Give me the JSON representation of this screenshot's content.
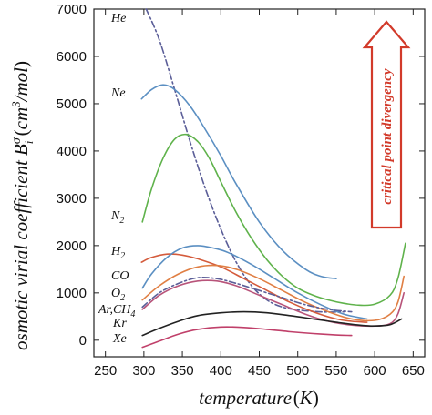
{
  "chart_data": {
    "type": "line",
    "xlabel": "temperature",
    "xlabel_unit": "K",
    "ylabel": "osmotic virial coefficient B",
    "ylabel_sup": "σ",
    "ylabel_sub": "i",
    "ylabel_unit": "cm",
    "ylabel_unit_sup": "3",
    "ylabel_unit_tail": "/mol",
    "xlim": [
      235,
      665
    ],
    "ylim": [
      -350,
      7000
    ],
    "xticks": [
      250,
      300,
      350,
      400,
      450,
      500,
      550,
      600,
      650
    ],
    "yticks": [
      0,
      1000,
      2000,
      3000,
      4000,
      5000,
      6000,
      7000
    ],
    "grid": false,
    "annotation": "critical point divergency",
    "series": [
      {
        "name": "He",
        "color": "#5b5e98",
        "dash": "dashdot",
        "x": [
          303,
          320,
          340,
          360,
          380,
          400,
          420,
          440,
          460,
          480,
          500,
          520,
          540,
          560
        ],
        "y": [
          7000,
          6350,
          5300,
          4200,
          3200,
          2350,
          1650,
          1150,
          850,
          700,
          640,
          610,
          595,
          600
        ]
      },
      {
        "name": "Ne",
        "color": "#5b8fc2",
        "dash": "solid",
        "x": [
          297,
          310,
          325,
          340,
          360,
          380,
          400,
          420,
          450,
          480,
          510,
          530,
          550
        ],
        "y": [
          5100,
          5300,
          5400,
          5300,
          4950,
          4450,
          3900,
          3300,
          2500,
          1900,
          1500,
          1350,
          1300
        ]
      },
      {
        "name": "N",
        "name_sub": "2",
        "color": "#5fb24b",
        "dash": "solid",
        "x": [
          298,
          310,
          325,
          340,
          355,
          370,
          385,
          400,
          420,
          440,
          460,
          480,
          500,
          520,
          540,
          560,
          580,
          600,
          620,
          630,
          640
        ],
        "y": [
          2500,
          3200,
          3850,
          4250,
          4350,
          4200,
          3850,
          3350,
          2700,
          2150,
          1700,
          1350,
          1100,
          950,
          850,
          780,
          740,
          760,
          950,
          1300,
          2050
        ]
      },
      {
        "name": "H",
        "name_sub": "2",
        "color": "#d45b3c",
        "dash": "solid",
        "x": [
          297,
          310,
          330,
          350,
          370,
          400,
          430,
          460,
          490,
          520,
          550,
          570,
          590
        ],
        "y": [
          1650,
          1750,
          1820,
          1800,
          1720,
          1550,
          1300,
          1050,
          800,
          600,
          450,
          400,
          380
        ]
      },
      {
        "name": "CO",
        "color": "#5b8fc2",
        "dash": "solid",
        "x": [
          298,
          310,
          330,
          350,
          370,
          390,
          410,
          440,
          470,
          500,
          530,
          560,
          590
        ],
        "y": [
          1100,
          1400,
          1750,
          1950,
          2000,
          1950,
          1850,
          1600,
          1300,
          1000,
          750,
          550,
          450
        ]
      },
      {
        "name": "O",
        "name_sub": "2",
        "color": "#e07f44",
        "dash": "solid",
        "x": [
          298,
          320,
          345,
          370,
          395,
          420,
          450,
          480,
          510,
          540,
          570,
          600,
          620,
          630,
          638
        ],
        "y": [
          850,
          1150,
          1400,
          1550,
          1580,
          1500,
          1300,
          1050,
          800,
          600,
          450,
          420,
          550,
          800,
          1350
        ]
      },
      {
        "name": "Ar,CH",
        "name_sub": "4",
        "color": "#b8547a",
        "dash": "solid",
        "x": [
          298,
          320,
          345,
          370,
          395,
          420,
          450,
          480,
          510,
          540,
          570,
          600,
          620,
          630,
          638
        ],
        "y": [
          650,
          950,
          1150,
          1250,
          1250,
          1150,
          950,
          750,
          550,
          400,
          320,
          300,
          350,
          550,
          1000
        ]
      },
      {
        "name": "Ar,CH4-dashed",
        "color": "#5b5e98",
        "dash": "dashdot",
        "x": [
          298,
          320,
          345,
          370,
          395,
          420,
          450,
          480,
          510,
          540,
          570
        ],
        "y": [
          700,
          1000,
          1200,
          1320,
          1300,
          1200,
          1050,
          900,
          750,
          650,
          600
        ]
      },
      {
        "name": "Kr",
        "color": "#222222",
        "dash": "solid",
        "x": [
          298,
          320,
          345,
          370,
          400,
          430,
          460,
          490,
          520,
          550,
          580,
          600,
          620,
          635
        ],
        "y": [
          100,
          250,
          400,
          520,
          580,
          600,
          580,
          520,
          450,
          380,
          320,
          300,
          330,
          450
        ]
      },
      {
        "name": "Xe",
        "color": "#c0406a",
        "dash": "solid",
        "x": [
          298,
          320,
          345,
          370,
          400,
          430,
          460,
          490,
          520,
          550,
          570
        ],
        "y": [
          -150,
          -20,
          130,
          230,
          280,
          270,
          230,
          180,
          140,
          110,
          100
        ]
      }
    ]
  }
}
